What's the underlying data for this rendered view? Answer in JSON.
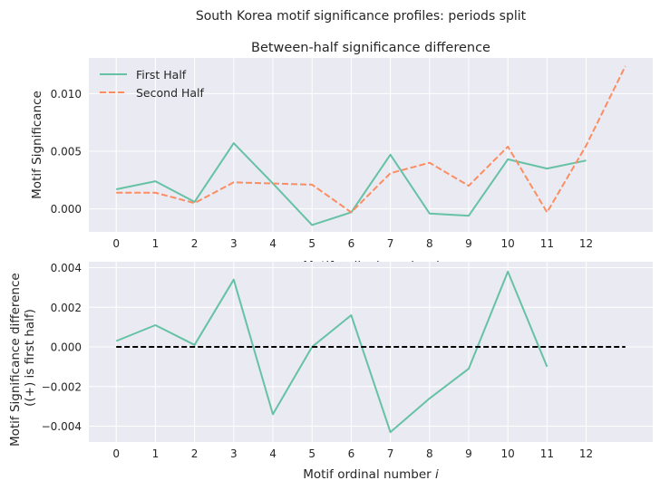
{
  "figure": {
    "suptitle": "South Korea motif significance profiles: periods split"
  },
  "colors": {
    "first_half": "#66c2a5",
    "second_half": "#fc8d62",
    "zero_line": "#000000",
    "plot_bg": "#eaeaf2",
    "grid": "#ffffff",
    "text": "#262626"
  },
  "chart_data": [
    {
      "type": "line",
      "title": "Between-half significance difference",
      "xlabel": "Motif ordinal number i",
      "ylabel": "Motif Significance",
      "x_ticks": [
        0,
        1,
        2,
        3,
        4,
        5,
        6,
        7,
        8,
        9,
        10,
        11,
        12
      ],
      "x_tick_labels": [
        "0",
        "1",
        "2",
        "3",
        "4",
        "5",
        "6",
        "7",
        "8",
        "9",
        "10",
        "11",
        "12"
      ],
      "y_ticks": [
        0.0,
        0.005,
        0.01
      ],
      "y_tick_labels": [
        "0.000",
        "0.005",
        "0.010"
      ],
      "xlim": [
        -0.7,
        13.7
      ],
      "ylim": [
        -0.002,
        0.0131
      ],
      "grid": true,
      "legend_position": "top-left",
      "series": [
        {
          "name": "First Half",
          "style": "solid",
          "x": [
            0,
            1,
            2,
            3,
            4,
            5,
            6,
            7,
            8,
            9,
            10,
            11,
            12
          ],
          "values": [
            0.0017,
            0.0024,
            0.0006,
            0.0057,
            0.0022,
            -0.0014,
            -0.0003,
            0.0047,
            -0.0004,
            -0.0006,
            0.0043,
            0.0035,
            0.0042
          ]
        },
        {
          "name": "Second Half",
          "style": "dashed",
          "x": [
            0,
            1,
            2,
            3,
            4,
            5,
            6,
            7,
            8,
            9,
            10,
            11,
            12,
            13
          ],
          "values": [
            0.0014,
            0.0014,
            0.0005,
            0.0023,
            0.0022,
            0.0021,
            -0.0003,
            0.0031,
            0.004,
            0.002,
            0.0054,
            -0.0003,
            0.0055,
            0.0124
          ]
        }
      ]
    },
    {
      "type": "line",
      "title": "",
      "xlabel": "Motif ordinal number i",
      "ylabel": "Motif Significance difference\n((+) is first half)",
      "x_ticks": [
        0,
        1,
        2,
        3,
        4,
        5,
        6,
        7,
        8,
        9,
        10,
        11,
        12
      ],
      "x_tick_labels": [
        "0",
        "1",
        "2",
        "3",
        "4",
        "5",
        "6",
        "7",
        "8",
        "9",
        "10",
        "11",
        "12"
      ],
      "y_ticks": [
        -0.004,
        -0.002,
        0.0,
        0.002,
        0.004
      ],
      "y_tick_labels": [
        "−0.004",
        "−0.002",
        "0.000",
        "0.002",
        "0.004"
      ],
      "xlim": [
        -0.7,
        13.7
      ],
      "ylim": [
        -0.0048,
        0.0043
      ],
      "grid": true,
      "series": [
        {
          "style": "solid",
          "x": [
            0,
            1,
            2,
            3,
            4,
            5,
            6,
            7,
            8,
            9,
            10,
            11
          ],
          "values": [
            0.0003,
            0.0011,
            0.0001,
            0.0034,
            -0.0034,
            0.0,
            0.0016,
            -0.0043,
            -0.0026,
            -0.0011,
            0.0038,
            -0.001
          ]
        },
        {
          "style": "dashed-zero",
          "x": [
            0,
            13
          ],
          "values": [
            0,
            0
          ]
        }
      ]
    }
  ]
}
